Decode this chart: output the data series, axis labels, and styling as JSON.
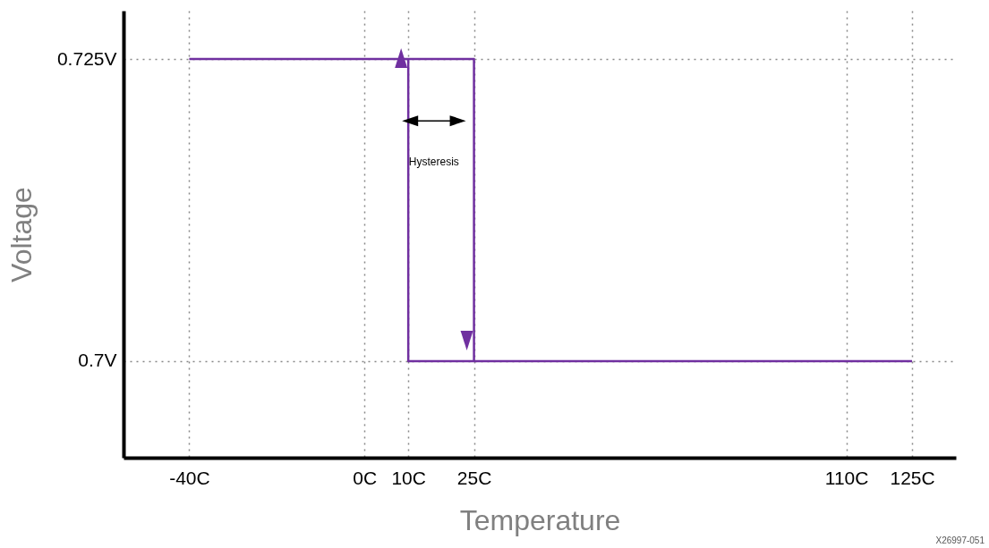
{
  "chart_data": {
    "type": "line",
    "xlabel": "Temperature",
    "ylabel": "Voltage",
    "xlim": [
      -55,
      135
    ],
    "ylim": [
      0.692,
      0.729
    ],
    "xticks": [
      {
        "value": -40,
        "label": "-40C"
      },
      {
        "value": 0,
        "label": "0C"
      },
      {
        "value": 10,
        "label": "10C"
      },
      {
        "value": 25,
        "label": "25C"
      },
      {
        "value": 110,
        "label": "110C"
      },
      {
        "value": 125,
        "label": "125C"
      }
    ],
    "yticks": [
      {
        "value": 0.7,
        "label": "0.7V"
      },
      {
        "value": 0.725,
        "label": "0.725V"
      }
    ],
    "series": [
      {
        "color": "#7030a0",
        "x": [
          -40,
          25,
          25
        ],
        "values": [
          0.725,
          0.725,
          0.7
        ]
      },
      {
        "color": "#7030a0",
        "x": [
          125,
          10,
          10
        ],
        "values": [
          0.7,
          0.7,
          0.725
        ]
      }
    ],
    "grid": true,
    "legend": false,
    "marker": "none",
    "line_style": "solid",
    "annotations": [
      "Hysteresis",
      "X26997-051"
    ]
  }
}
